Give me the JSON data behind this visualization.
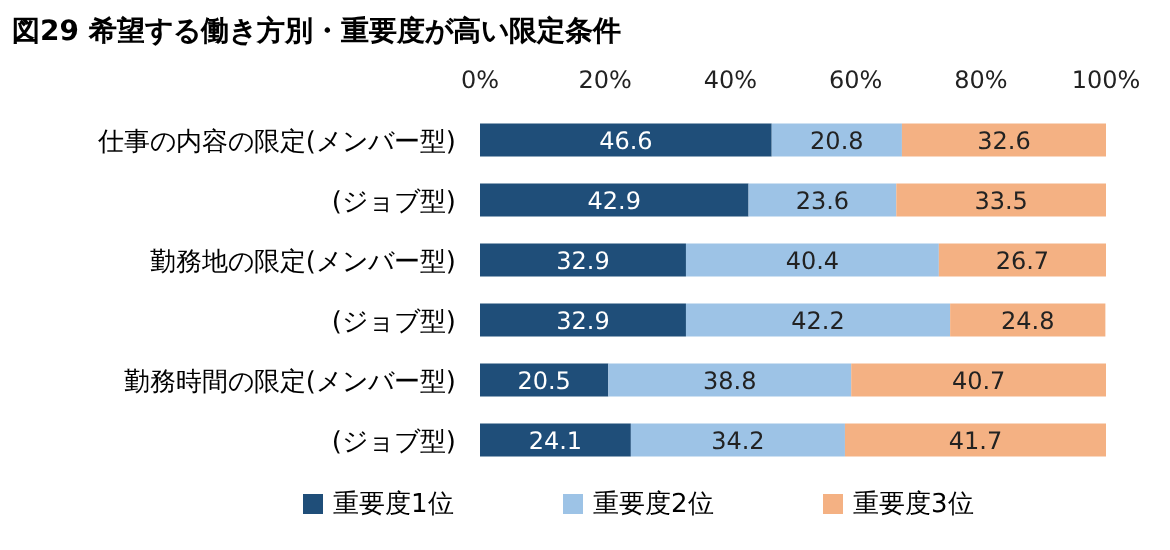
{
  "chart_data": {
    "type": "bar",
    "orientation": "horizontal",
    "stacked": true,
    "title": "図29 希望する働き方別・重要度が高い限定条件",
    "categories": [
      "仕事の内容の限定(メンバー型)",
      "(ジョブ型)",
      "勤務地の限定(メンバー型)",
      "(ジョブ型)",
      "勤務時間の限定(メンバー型)",
      "(ジョブ型)"
    ],
    "series": [
      {
        "name": "重要度1位",
        "color": "#1f4e79",
        "values": [
          46.6,
          42.9,
          32.9,
          32.9,
          20.5,
          24.1
        ]
      },
      {
        "name": "重要度2位",
        "color": "#9dc3e6",
        "values": [
          20.8,
          23.6,
          40.4,
          42.2,
          38.8,
          34.2
        ]
      },
      {
        "name": "重要度3位",
        "color": "#f4b183",
        "values": [
          32.6,
          33.5,
          26.7,
          24.8,
          40.7,
          41.7
        ]
      }
    ],
    "xlim": [
      0,
      100
    ],
    "xticks": [
      {
        "value": 0,
        "label": "0%"
      },
      {
        "value": 20,
        "label": "20%"
      },
      {
        "value": 40,
        "label": "40%"
      },
      {
        "value": 60,
        "label": "60%"
      },
      {
        "value": 80,
        "label": "80%"
      },
      {
        "value": 100,
        "label": "100%"
      }
    ],
    "data_labels": true,
    "legend": "bottom"
  }
}
